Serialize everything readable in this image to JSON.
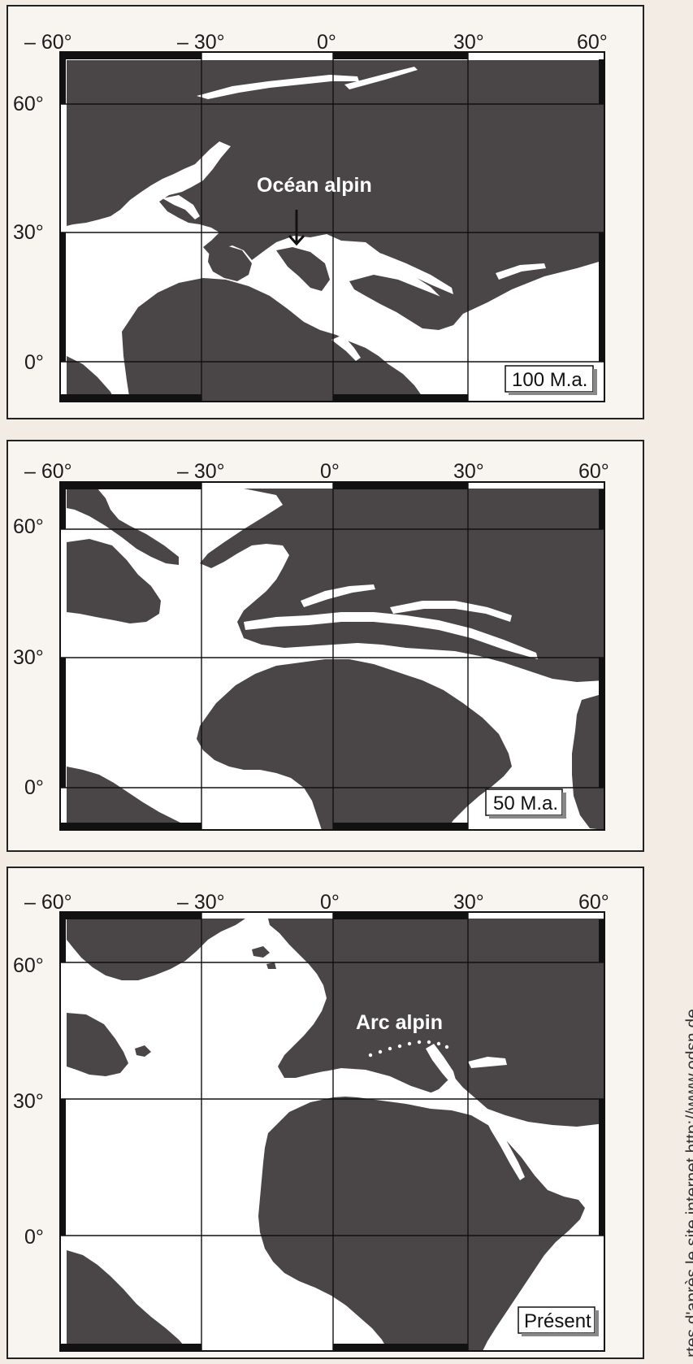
{
  "panels": [
    {
      "x_ticks": [
        "– 60°",
        "– 30°",
        "0°",
        "30°",
        "60°"
      ],
      "y_ticks": [
        "60°",
        "30°",
        "0°"
      ],
      "age": "100 M.a.",
      "annotation": "Océan alpin"
    },
    {
      "x_ticks": [
        "– 60°",
        "– 30°",
        "0°",
        "30°",
        "60°"
      ],
      "y_ticks": [
        "60°",
        "30°",
        "0°"
      ],
      "age": "50 M.a."
    },
    {
      "x_ticks": [
        "– 60°",
        "– 30°",
        "0°",
        "30°",
        "60°"
      ],
      "y_ticks": [
        "60°",
        "30°",
        "0°"
      ],
      "age": "Présent",
      "annotation": "Arc alpin"
    }
  ],
  "credit": "rtes d'après le site internet http://www.odsn.de",
  "colors": {
    "land": "#4a4648",
    "ocean": "#ffffff",
    "frame": "#111111"
  }
}
